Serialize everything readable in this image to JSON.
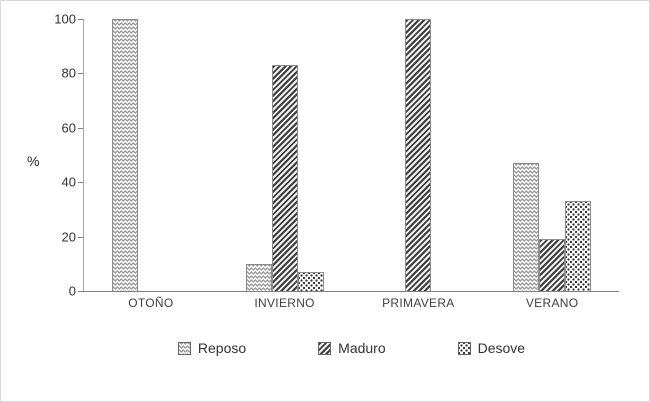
{
  "chart_data": {
    "type": "bar",
    "title": "",
    "xlabel": "",
    "ylabel": "%",
    "ylim": [
      0,
      100
    ],
    "yticks": [
      100,
      80,
      60,
      40,
      20,
      0
    ],
    "categories": [
      "OTOÑO",
      "INVIERNO",
      "PRIMAVERA",
      "VERANO"
    ],
    "series": [
      {
        "name": "Reposo",
        "pattern": "zigzag-light",
        "values": [
          100,
          10,
          0,
          47
        ]
      },
      {
        "name": "Maduro",
        "pattern": "diagonal-hatch-dark",
        "values": [
          0,
          83,
          100,
          19
        ]
      },
      {
        "name": "Desove",
        "pattern": "dots",
        "values": [
          0,
          7,
          0,
          33
        ]
      }
    ],
    "legend_position": "bottom",
    "grid": false
  }
}
